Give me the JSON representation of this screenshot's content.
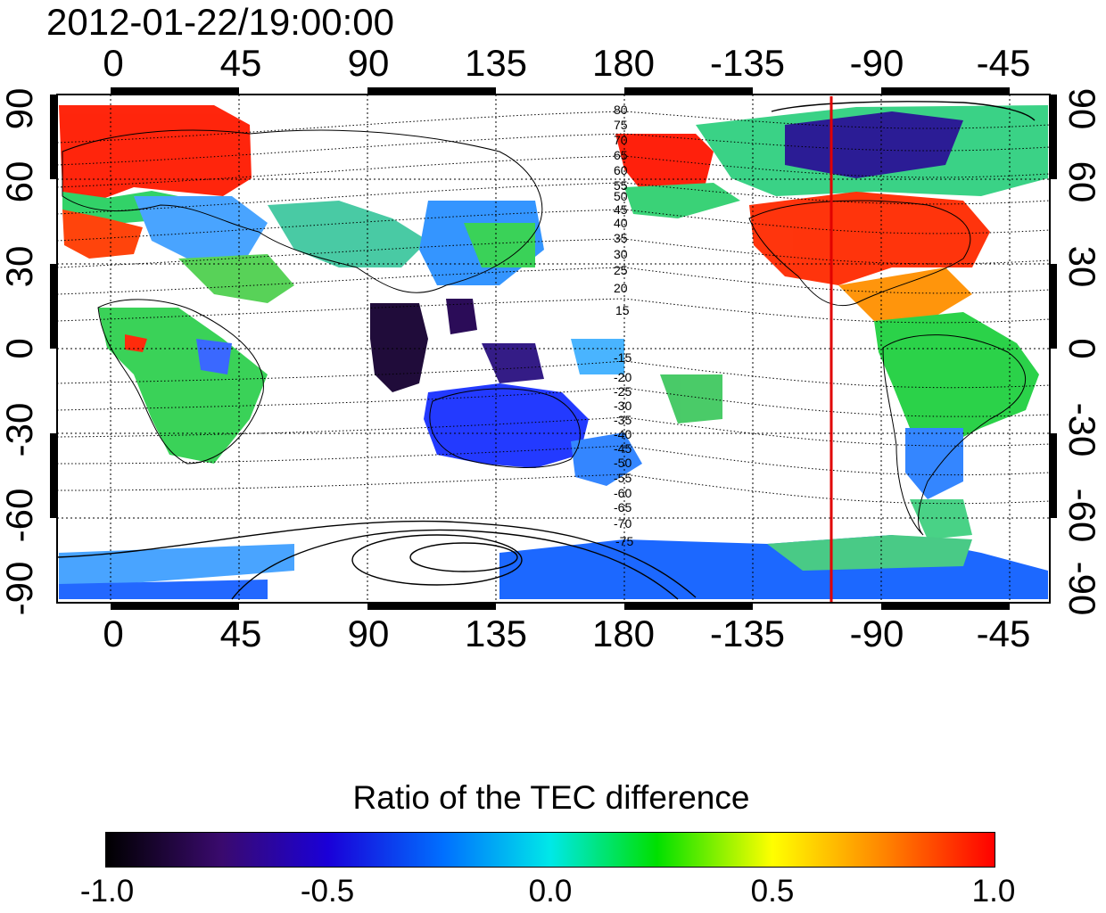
{
  "title": "2012-01-22/19:00:00",
  "x_ticks": [
    "0",
    "45",
    "90",
    "135",
    "180",
    "-135",
    "-90",
    "-45"
  ],
  "y_ticks_left": [
    "90",
    "60",
    "30",
    "0",
    "-30",
    "-60",
    "-90"
  ],
  "y_ticks_right": [
    "90",
    "60",
    "30",
    "0",
    "-30",
    "-60",
    "-90"
  ],
  "contour_labels_north": [
    "80",
    "75",
    "70",
    "65",
    "60",
    "55",
    "50",
    "45",
    "40",
    "35",
    "30",
    "25",
    "20",
    "15"
  ],
  "contour_labels_south": [
    "-15",
    "-20",
    "-25",
    "-30",
    "-35",
    "-40",
    "-45",
    "-50",
    "-55",
    "-60",
    "-65",
    "-70",
    "-75"
  ],
  "marker_longitude": "-105",
  "colorbar": {
    "title": "Ratio of the TEC difference",
    "ticks": [
      "-1.0",
      "-0.5",
      "0.0",
      "0.5",
      "1.0"
    ]
  },
  "colors": {
    "marker": "#e00000"
  },
  "regions": [
    {
      "name": "europe-positive",
      "color": "#ff1a00"
    },
    {
      "name": "north-america-positive",
      "color": "#ff2a00"
    },
    {
      "name": "east-siberia-positive",
      "color": "#ff1500"
    },
    {
      "name": "indonesia-negative",
      "color": "#1a0040"
    },
    {
      "name": "australia-negative",
      "color": "#1a30ff"
    },
    {
      "name": "south-america-green",
      "color": "#20d040"
    },
    {
      "name": "antarctic-blue",
      "color": "#1060ff"
    }
  ]
}
